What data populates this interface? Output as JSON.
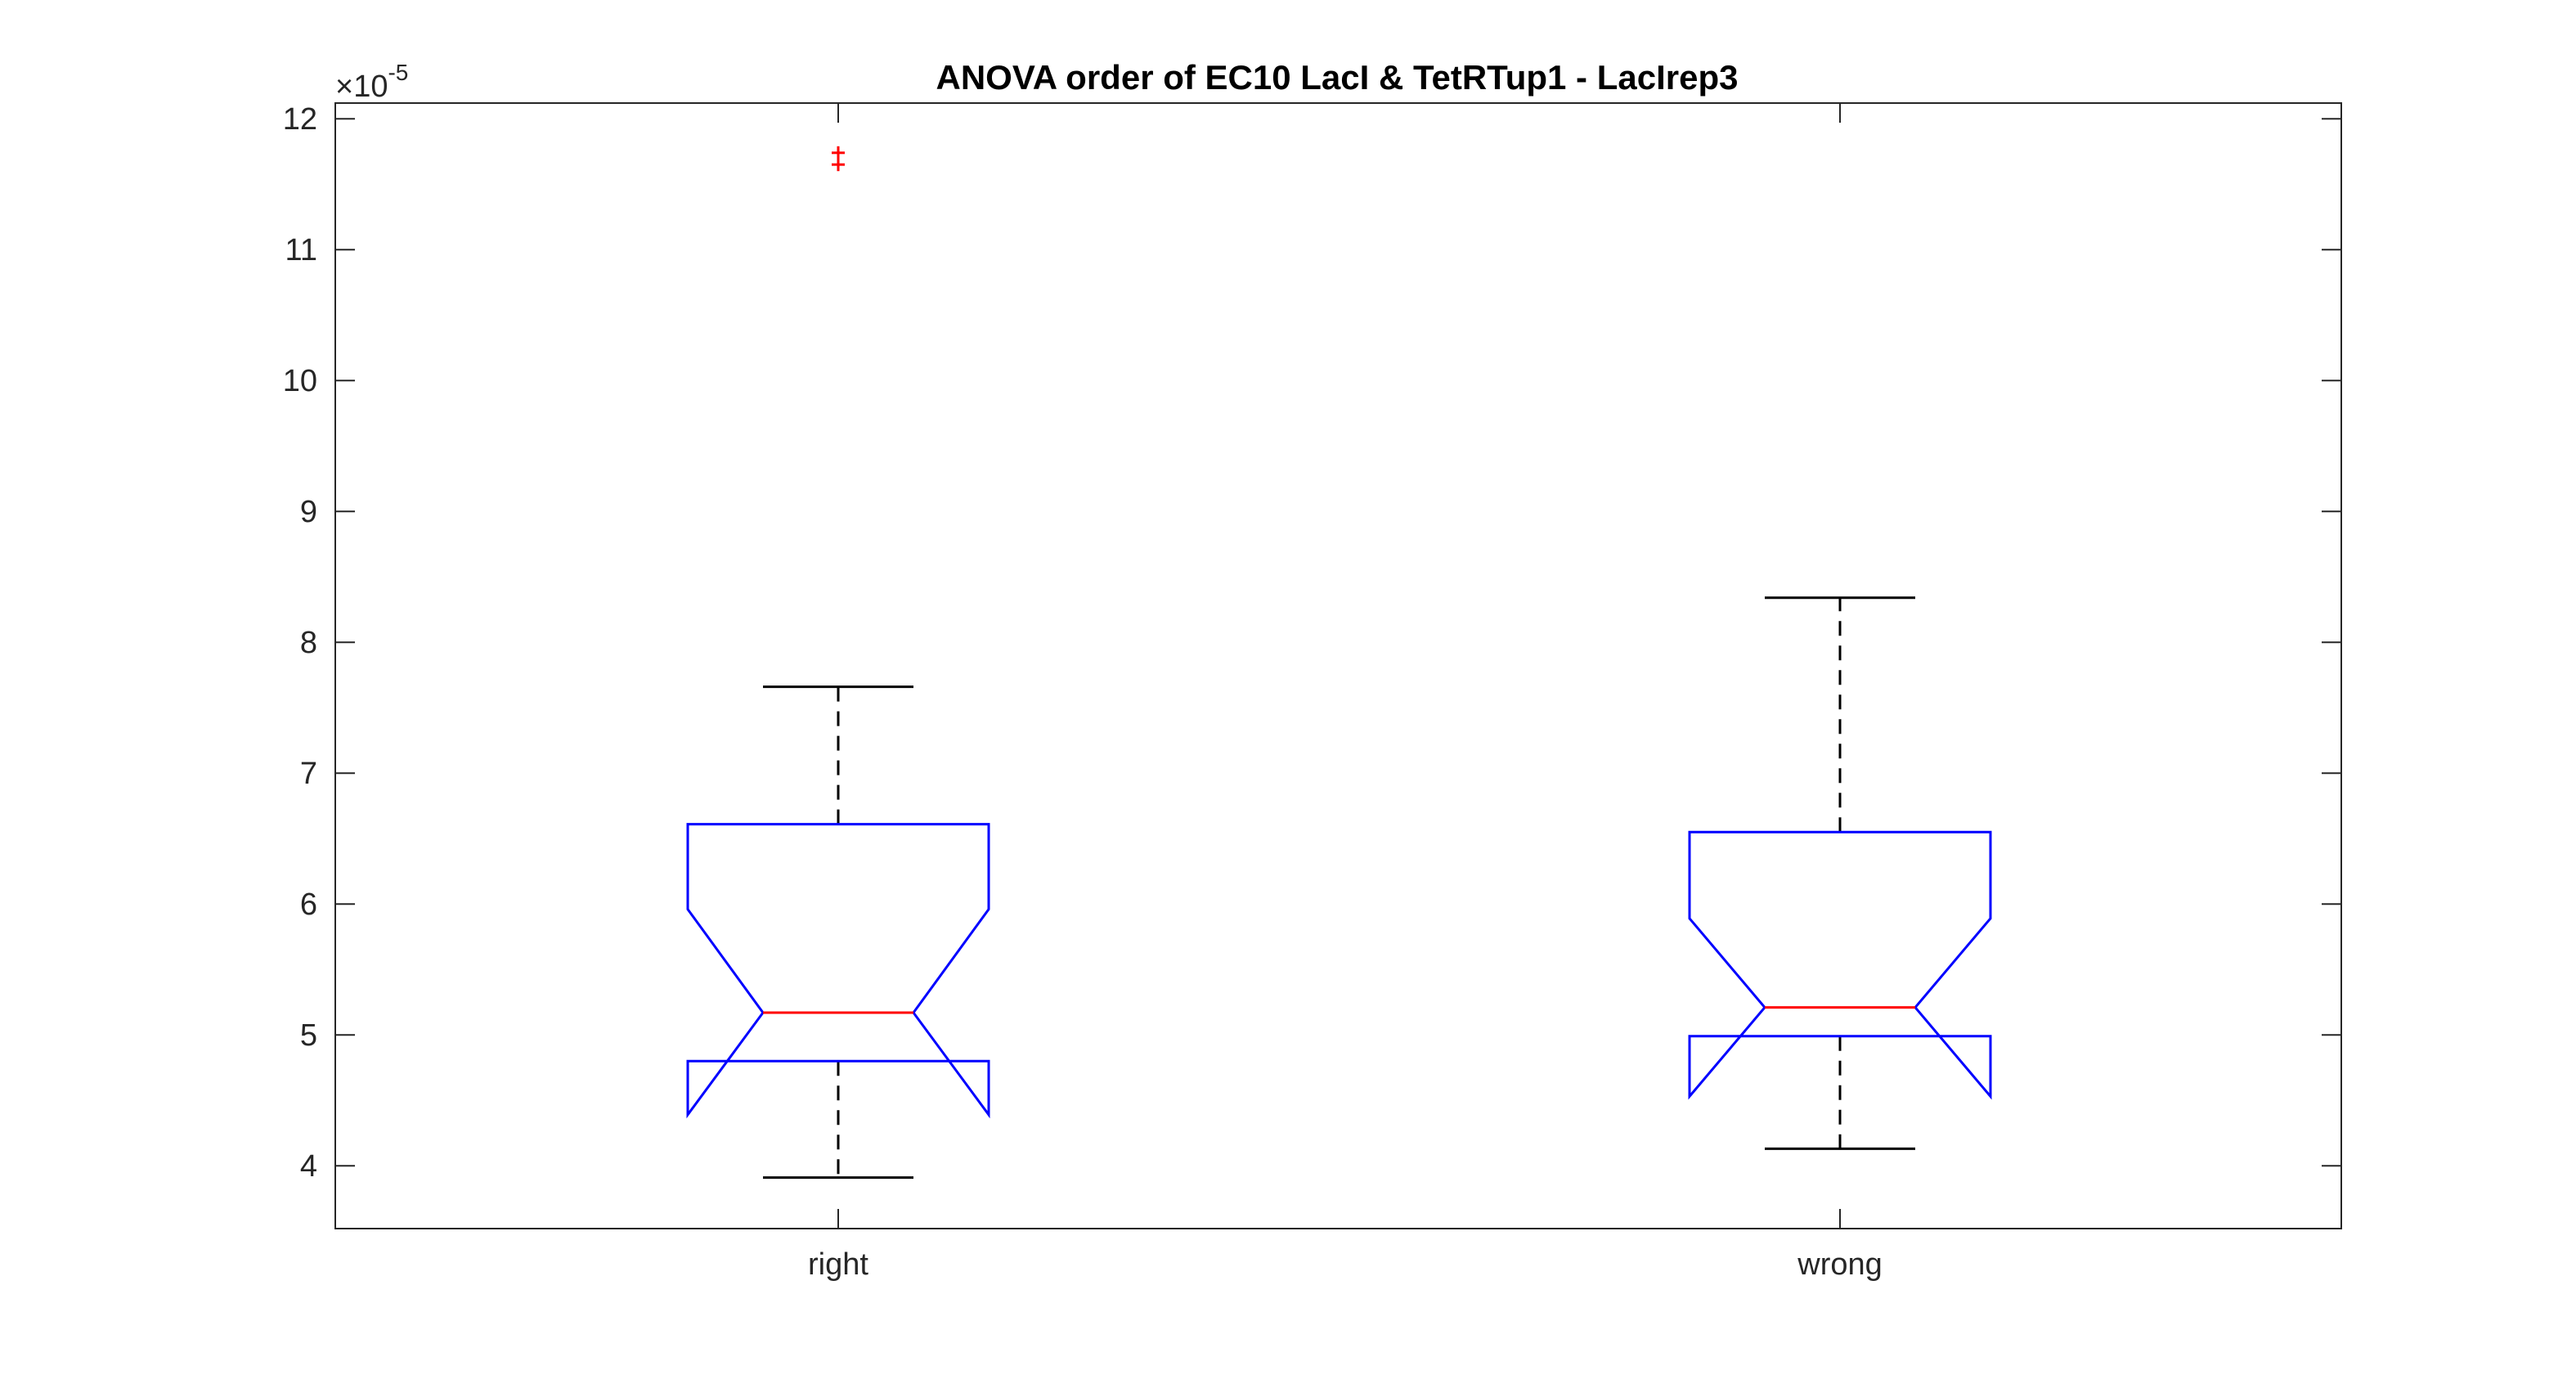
{
  "chart_data": {
    "type": "boxplot",
    "title": "ANOVA order of EC10 LacI & TetRTup1 - LacIrep3",
    "xlabel": "",
    "ylabel": "",
    "y_exponent_label": "×10",
    "y_exponent_power": "-5",
    "ylim": [
      3.52,
      12.12
    ],
    "yticks": [
      4,
      5,
      6,
      7,
      8,
      9,
      10,
      11,
      12
    ],
    "ytick_labels": [
      "4",
      "5",
      "6",
      "7",
      "8",
      "9",
      "10",
      "11",
      "12"
    ],
    "categories": [
      "right",
      "wrong"
    ],
    "notched": true,
    "grid": false,
    "colors": {
      "box": "#0000ff",
      "median": "#ff0000",
      "whisker": "#000000",
      "outlier": "#ff0000",
      "axis": "#262626"
    },
    "boxes": [
      {
        "category": "right",
        "whisker_low": 3.91,
        "q1": 4.8,
        "notch_low": 4.39,
        "median": 5.17,
        "notch_high": 5.96,
        "q3": 6.61,
        "whisker_high": 7.66,
        "outliers": [
          11.65,
          11.74
        ]
      },
      {
        "category": "wrong",
        "whisker_low": 4.13,
        "q1": 4.99,
        "notch_low": 4.53,
        "median": 5.21,
        "notch_high": 5.89,
        "q3": 6.55,
        "whisker_high": 8.34,
        "outliers": []
      }
    ]
  }
}
